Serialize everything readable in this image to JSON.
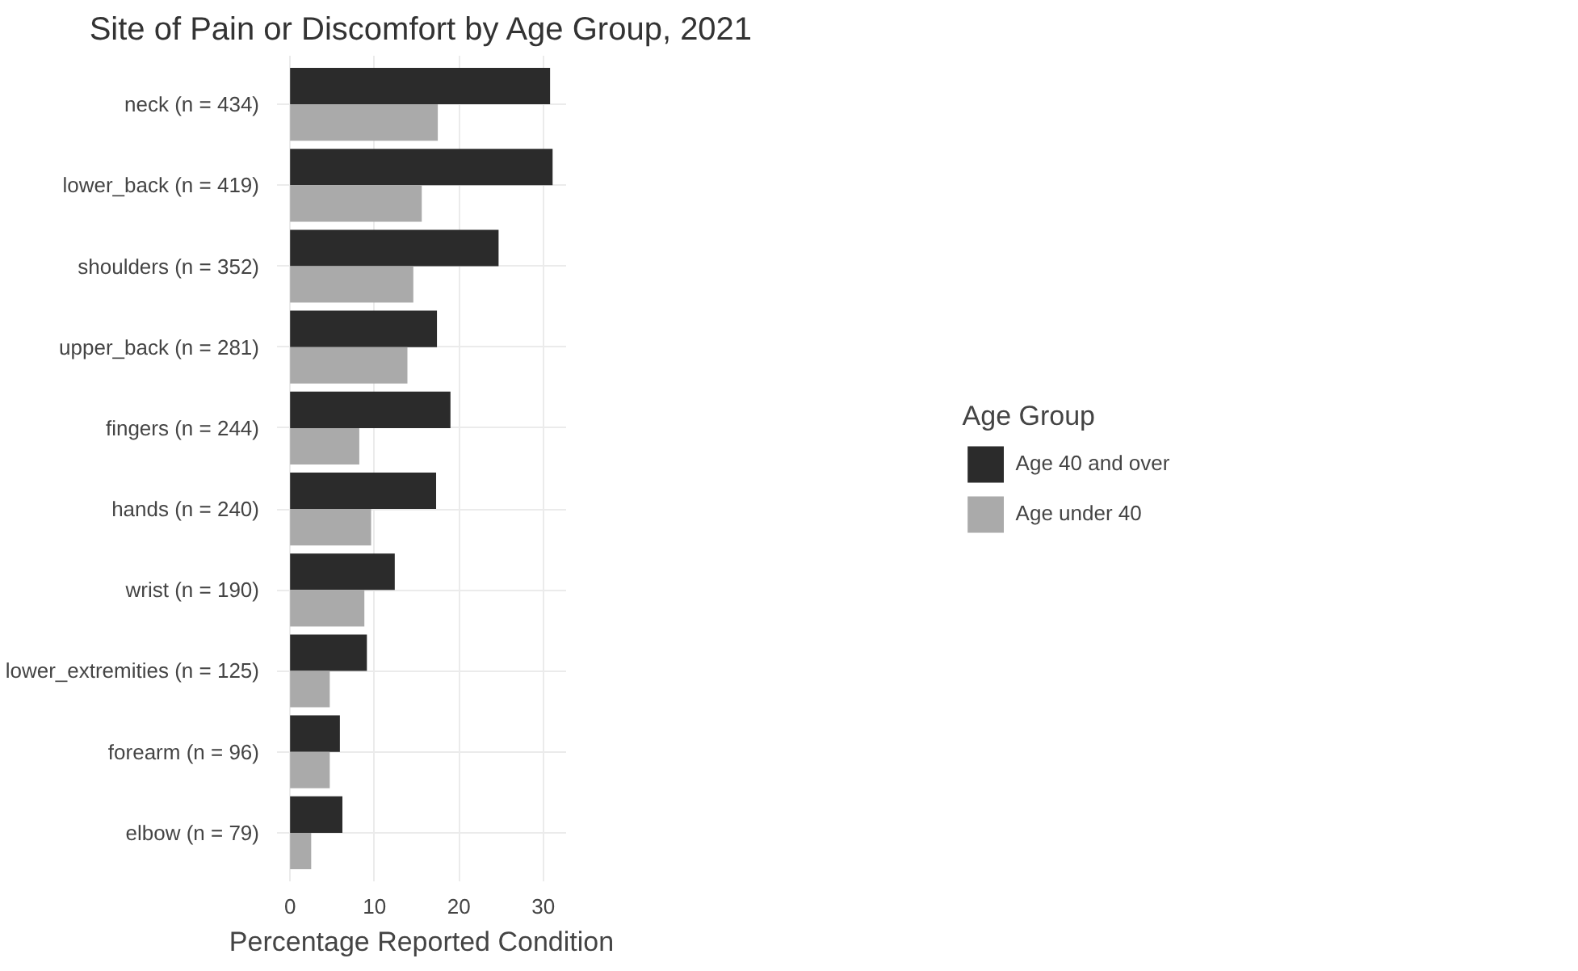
{
  "chart_data": {
    "type": "bar",
    "orientation": "horizontal",
    "title": "Site of Pain or Discomfort by Age Group, 2021",
    "xlabel": "Percentage Reported Condition",
    "legend_title": "Age Group",
    "legend": "right",
    "grid": true,
    "categories": [
      "neck (n = 434)",
      "lower_back (n = 419)",
      "shoulders (n = 352)",
      "upper_back (n = 281)",
      "fingers (n = 244)",
      "hands (n = 240)",
      "wrist (n = 190)",
      "lower_extremities (n = 125)",
      "forearm (n = 96)",
      "elbow (n = 79)"
    ],
    "series": [
      {
        "name": "Age 40 and over",
        "color": "#2b2b2b",
        "values": [
          30.8,
          31.1,
          24.7,
          17.4,
          19.0,
          17.3,
          12.4,
          9.1,
          5.9,
          6.2
        ]
      },
      {
        "name": "Age under 40",
        "color": "#aaaaaa",
        "values": [
          17.5,
          15.6,
          14.6,
          13.9,
          8.2,
          9.6,
          8.8,
          4.7,
          4.7,
          2.5
        ]
      }
    ],
    "xlim": [
      -1.55,
      32.7
    ],
    "xticks": [
      0,
      10,
      20,
      30
    ]
  }
}
